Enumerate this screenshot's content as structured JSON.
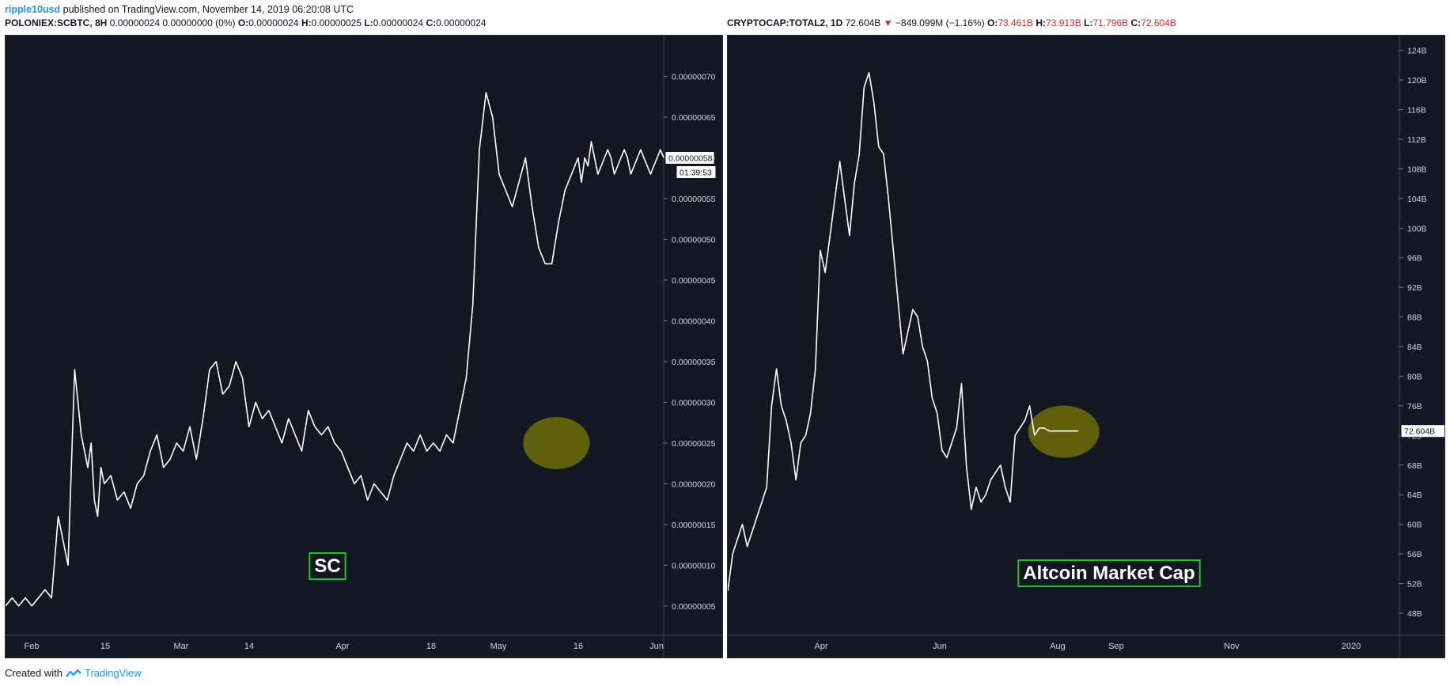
{
  "header": {
    "publisher": "ripple10usd",
    "published_text": "published on TradingView.com, November 14, 2019 06:20:08 UTC"
  },
  "left_ohlc": {
    "symbol": "POLONIEX:SCBTC, 8H",
    "change": "0.00000024  0.00000000 (0%)",
    "o_label": "O:",
    "o_value": "0.00000024",
    "h_label": "H:",
    "h_value": "0.00000025",
    "l_label": "L:",
    "l_value": "0.00000024",
    "c_label": "C:",
    "c_value": "0.00000024"
  },
  "right_ohlc": {
    "symbol": "CRYPTOCAP:TOTAL2, 1D",
    "last": "72.604B",
    "arrow": "▼",
    "change": "−849.099M (−1.16%)",
    "o_label": "O:",
    "o_value": "73.461B",
    "h_label": "H:",
    "h_value": "73.913B",
    "l_label": "L:",
    "l_value": "71.796B",
    "c_label": "C:",
    "c_value": "72.604B"
  },
  "footer": {
    "created_with": "Created with",
    "brand": "TradingView"
  },
  "colors": {
    "panel_bg": "#131722",
    "line": "#ffffff",
    "axis_text": "#d1d4dc",
    "highlight": "#808000",
    "label_border": "#22c322",
    "price_down": "#d32f2f",
    "brand": "#2196f3"
  },
  "chart_data": [
    {
      "type": "line",
      "symbol": "POLONIEX:SCBTC",
      "interval": "8H",
      "annotation": "SC",
      "x_tick_labels": [
        "Feb",
        "15",
        "Mar",
        "14",
        "Apr",
        "18",
        "May",
        "16",
        "Jun"
      ],
      "y_tick_labels": [
        "0.00000005",
        "0.00000010",
        "0.00000015",
        "0.00000020",
        "0.00000025",
        "0.00000030",
        "0.00000035",
        "0.00000040",
        "0.00000045",
        "0.00000050",
        "0.00000055",
        "0.00000060",
        "0.00000065",
        "0.00000070"
      ],
      "y_ticks": [
        5,
        10,
        15,
        20,
        25,
        30,
        35,
        40,
        45,
        50,
        55,
        60,
        65,
        70
      ],
      "y_unit_note": "values in satoshi (1e-8 BTC)",
      "ylim": [
        1.4,
        75
      ],
      "current_price_label": "0.00000058",
      "countdown_label": "01:39:53",
      "highlight": {
        "x": 0.837,
        "y": 25
      },
      "x": [
        0.0,
        0.01,
        0.02,
        0.03,
        0.04,
        0.05,
        0.06,
        0.07,
        0.08,
        0.095,
        0.105,
        0.115,
        0.125,
        0.13,
        0.135,
        0.14,
        0.145,
        0.15,
        0.16,
        0.17,
        0.18,
        0.19,
        0.2,
        0.21,
        0.22,
        0.23,
        0.24,
        0.25,
        0.26,
        0.27,
        0.28,
        0.29,
        0.3,
        0.31,
        0.32,
        0.33,
        0.34,
        0.35,
        0.36,
        0.37,
        0.38,
        0.39,
        0.4,
        0.41,
        0.42,
        0.43,
        0.44,
        0.45,
        0.46,
        0.47,
        0.48,
        0.49,
        0.5,
        0.51,
        0.52,
        0.53,
        0.54,
        0.55,
        0.56,
        0.57,
        0.58,
        0.59,
        0.6,
        0.61,
        0.62,
        0.63,
        0.64,
        0.65,
        0.66,
        0.67,
        0.68,
        0.69,
        0.7,
        0.71,
        0.72,
        0.73,
        0.74,
        0.75,
        0.76,
        0.77,
        0.78,
        0.79,
        0.8,
        0.81,
        0.82,
        0.83,
        0.84,
        0.85,
        0.86,
        0.87,
        0.875,
        0.88,
        0.885,
        0.89,
        0.895,
        0.9,
        0.905,
        0.91,
        0.915,
        0.92,
        0.925,
        0.93,
        0.935,
        0.94,
        0.945,
        0.95,
        0.955,
        0.96,
        0.965,
        0.97,
        0.975,
        0.98,
        0.985,
        0.99,
        0.995,
        1.0
      ],
      "values": [
        5,
        6,
        5,
        6,
        5,
        6,
        7,
        6,
        16,
        10,
        34,
        26,
        22,
        25,
        18,
        16,
        22,
        20,
        21,
        18,
        19,
        17,
        20,
        21,
        24,
        26,
        22,
        23,
        25,
        24,
        27,
        23,
        28,
        34,
        35,
        31,
        32,
        35,
        33,
        27,
        30,
        28,
        29,
        27,
        25,
        28,
        26,
        24,
        29,
        27,
        26,
        27,
        25,
        24,
        22,
        20,
        21,
        18,
        20,
        19,
        18,
        21,
        23,
        25,
        24,
        26,
        24,
        25,
        24,
        26,
        25,
        29,
        33,
        42,
        61,
        68,
        65,
        58,
        56,
        54,
        57,
        60,
        54,
        49,
        47,
        47,
        52,
        56,
        58,
        60,
        57,
        60,
        59,
        62,
        60,
        58,
        59,
        60,
        61,
        60,
        58,
        59,
        60,
        61,
        60,
        58,
        59,
        60,
        61,
        60,
        59,
        58,
        59,
        60,
        61,
        60
      ]
    },
    {
      "type": "line",
      "symbol": "CRYPTOCAP:TOTAL2",
      "interval": "1D",
      "annotation": "Altcoin Market Cap",
      "x_tick_labels": [
        "Apr",
        "Jun",
        "Aug",
        "Sep",
        "Nov",
        "2020"
      ],
      "y_tick_labels": [
        "48B",
        "52B",
        "56B",
        "60B",
        "64B",
        "68B",
        "72B",
        "76B",
        "80B",
        "84B",
        "88B",
        "92B",
        "96B",
        "100B",
        "104B",
        "108B",
        "112B",
        "116B",
        "120B",
        "124B"
      ],
      "y_ticks": [
        48,
        52,
        56,
        60,
        64,
        68,
        72,
        76,
        80,
        84,
        88,
        92,
        96,
        100,
        104,
        108,
        112,
        116,
        120,
        124
      ],
      "y_unit": "billion USD",
      "ylim": [
        45,
        126
      ],
      "current_price_label": "72.604B",
      "highlight": {
        "x": 0.69,
        "y": 72.5
      },
      "x": [
        0.0,
        0.01,
        0.02,
        0.03,
        0.04,
        0.05,
        0.06,
        0.07,
        0.08,
        0.09,
        0.1,
        0.11,
        0.12,
        0.13,
        0.14,
        0.15,
        0.16,
        0.17,
        0.18,
        0.19,
        0.2,
        0.21,
        0.22,
        0.23,
        0.24,
        0.25,
        0.26,
        0.27,
        0.28,
        0.29,
        0.3,
        0.31,
        0.32,
        0.33,
        0.34,
        0.35,
        0.36,
        0.37,
        0.38,
        0.39,
        0.4,
        0.41,
        0.42,
        0.43,
        0.44,
        0.45,
        0.46,
        0.47,
        0.48,
        0.49,
        0.5,
        0.51,
        0.52,
        0.53,
        0.54,
        0.55,
        0.56,
        0.57,
        0.58,
        0.59,
        0.6,
        0.61,
        0.62,
        0.63,
        0.64,
        0.65,
        0.66,
        0.67,
        0.68,
        0.69,
        0.7,
        0.71,
        0.72
      ],
      "values": [
        51,
        56,
        58,
        60,
        57,
        59,
        61,
        63,
        65,
        76,
        81,
        76,
        74,
        71,
        66,
        71,
        72,
        75,
        81,
        97,
        94,
        99,
        104,
        109,
        104,
        99,
        106,
        110,
        119,
        121,
        117,
        111,
        110,
        104,
        97,
        90,
        83,
        86,
        89,
        88,
        84,
        82,
        77,
        75,
        70,
        69,
        71,
        73,
        79,
        68,
        62,
        65,
        63,
        64,
        66,
        67,
        68,
        65,
        63,
        72,
        73,
        74,
        76,
        72,
        73,
        73,
        72.6,
        72.6,
        72.6,
        72.6,
        72.6,
        72.6,
        72.6
      ]
    }
  ]
}
